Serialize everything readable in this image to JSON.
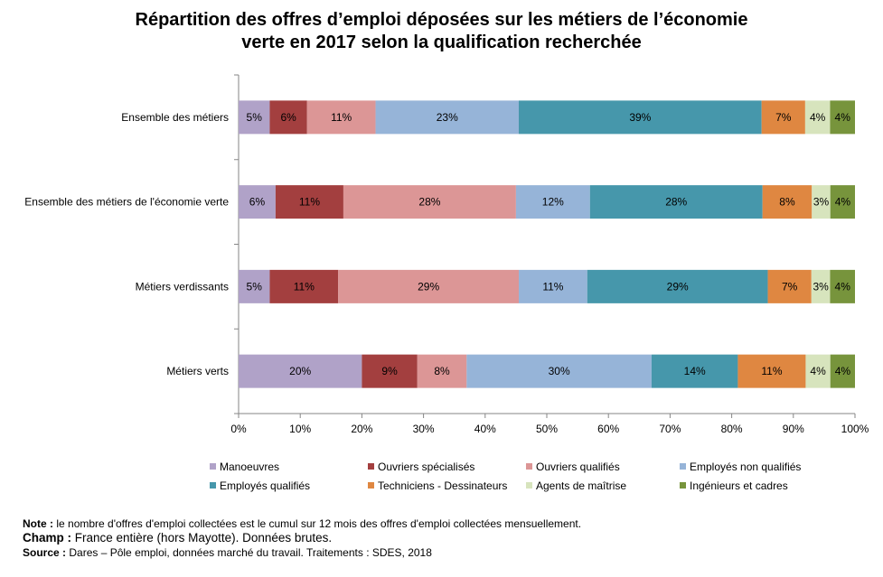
{
  "title": {
    "line1": "Répartition  des offres d’emploi déposées sur les métiers de l’économie",
    "line2": "verte en 2017 selon la qualification  recherchée"
  },
  "chart_data": {
    "type": "bar",
    "orientation": "horizontal",
    "stacked": "percent",
    "title": "Répartition des offres d’emploi déposées sur les métiers de l’économie verte en 2017 selon la qualification recherchée",
    "categories": [
      "Ensemble des métiers",
      "Ensemble des métiers de l'économie verte",
      "Métiers verdissants",
      "Métiers verts"
    ],
    "series": [
      {
        "name": "Manoeuvres",
        "color": "#b0a2c8",
        "values": [
          5,
          6,
          5,
          20
        ],
        "labels": [
          "5%",
          "6%",
          "5%",
          "20%"
        ]
      },
      {
        "name": "Ouvriers spécialisés",
        "color": "#a33f3f",
        "values": [
          6,
          11,
          11,
          9
        ],
        "labels": [
          "6%",
          "11%",
          "11%",
          "9%"
        ]
      },
      {
        "name": "Ouvriers qualifiés",
        "color": "#dc9696",
        "values": [
          11,
          28,
          29,
          8
        ],
        "labels": [
          "11%",
          "28%",
          "29%",
          "8%"
        ]
      },
      {
        "name": "Employés non qualifiés",
        "color": "#96b4d8",
        "values": [
          23,
          12,
          11,
          30
        ],
        "labels": [
          "23%",
          "12%",
          "11%",
          "30%"
        ]
      },
      {
        "name": "Employés qualifiés",
        "color": "#4697ab",
        "values": [
          39,
          28,
          29,
          14
        ],
        "labels": [
          "39%",
          "28%",
          "29%",
          "14%"
        ]
      },
      {
        "name": "Techniciens - Dessinateurs",
        "color": "#df8741",
        "values": [
          7,
          8,
          7,
          11
        ],
        "labels": [
          "7%",
          "8%",
          "7%",
          "11%"
        ]
      },
      {
        "name": "Agents de maîtrise",
        "color": "#d7e4bd",
        "values": [
          4,
          3,
          3,
          4
        ],
        "labels": [
          "4%",
          "3%",
          "3%",
          "4%"
        ]
      },
      {
        "name": "Ingénieurs et cadres",
        "color": "#77943c",
        "values": [
          4,
          4,
          4,
          4
        ],
        "labels": [
          "4%",
          "4%",
          "4%",
          "4%"
        ]
      }
    ],
    "xlim": [
      0,
      100
    ],
    "xticks": [
      "0%",
      "10%",
      "20%",
      "30%",
      "40%",
      "50%",
      "60%",
      "70%",
      "80%",
      "90%",
      "100%"
    ],
    "grid": false,
    "legend_position": "bottom"
  },
  "notes": {
    "note_label": "Note :",
    "note_text": "le nombre d'offres  d'emploi collectées est le cumul sur 12 mois des offres  d'emploi collectées mensuellement.",
    "champ_label": "Champ :",
    "champ_text": "France entière (hors Mayotte).  Données brutes.",
    "source_label": "Source :",
    "source_text": "Dares – Pôle emploi, données marché  du travail.  Traitements  : SDES, 2018"
  }
}
